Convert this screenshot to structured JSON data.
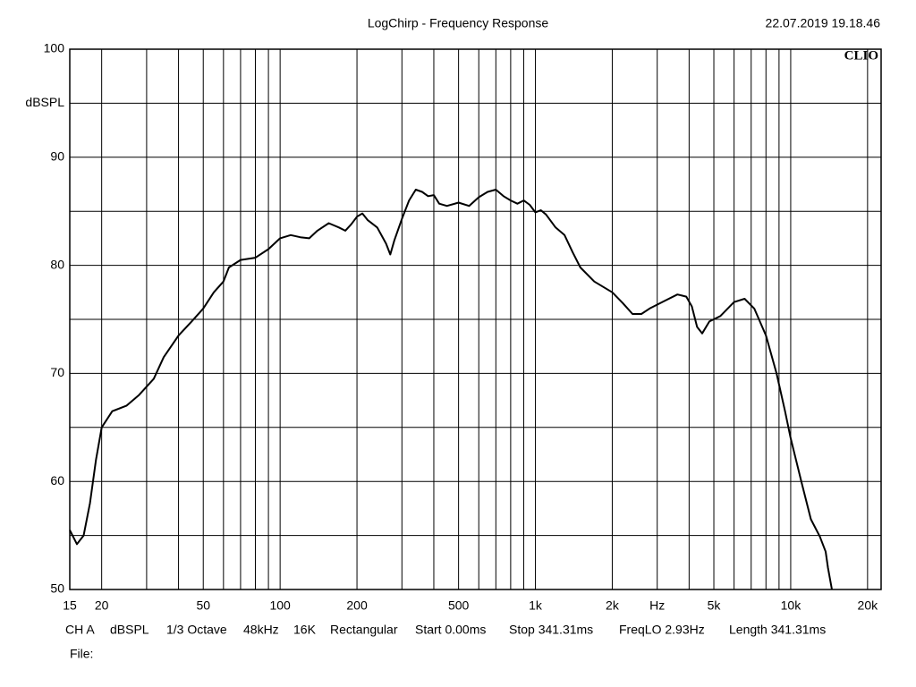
{
  "header": {
    "title": "LogChirp - Frequency Response",
    "timestamp": "22.07.2019 19.18.46"
  },
  "chart_data": {
    "type": "line",
    "xscale": "log",
    "grid": true,
    "color": "#000000",
    "logo": "CLIO",
    "xlim": [
      15,
      22600
    ],
    "ylim": [
      50,
      100
    ],
    "xticks": [
      15,
      20,
      50,
      100,
      200,
      500,
      {
        "value": 1000,
        "label": "1k"
      },
      {
        "value": 2000,
        "label": "2k"
      },
      {
        "value": 3000,
        "label": "Hz"
      },
      {
        "value": 5000,
        "label": "5k"
      },
      {
        "value": 10000,
        "label": "10k"
      },
      {
        "value": 20000,
        "label": "20k"
      }
    ],
    "xgrid_minor": [
      30,
      40,
      60,
      70,
      80,
      90,
      300,
      400,
      600,
      700,
      800,
      900,
      4000,
      6000,
      7000,
      8000,
      9000
    ],
    "yticks": [
      50,
      60,
      70,
      80,
      90,
      {
        "value": 95,
        "label": "dBSPL"
      },
      100
    ],
    "ygrid_minor": [
      55,
      65,
      75,
      85
    ],
    "x": [
      15,
      16,
      17,
      18,
      19,
      20,
      22,
      25,
      28,
      32,
      35,
      40,
      45,
      50,
      55,
      60,
      63,
      70,
      80,
      90,
      100,
      110,
      120,
      130,
      140,
      155,
      170,
      180,
      190,
      200,
      210,
      220,
      240,
      260,
      270,
      280,
      300,
      320,
      340,
      360,
      380,
      400,
      420,
      450,
      500,
      550,
      600,
      650,
      700,
      750,
      800,
      850,
      900,
      950,
      1000,
      1050,
      1100,
      1200,
      1300,
      1400,
      1500,
      1700,
      2000,
      2200,
      2400,
      2600,
      2800,
      3200,
      3600,
      3900,
      4100,
      4300,
      4500,
      4800,
      5300,
      6000,
      6600,
      7200,
      8000,
      8800,
      9500,
      10000,
      11000,
      12000,
      13000,
      13700,
      14000,
      14500
    ],
    "values": [
      55.5,
      54.2,
      55,
      58,
      62,
      65,
      66.5,
      67,
      68,
      69.5,
      71.5,
      73.5,
      74.8,
      76,
      77.5,
      78.5,
      79.8,
      80.5,
      80.7,
      81.5,
      82.5,
      82.8,
      82.6,
      82.5,
      83.2,
      83.9,
      83.5,
      83.2,
      83.8,
      84.5,
      84.8,
      84.2,
      83.5,
      82,
      81,
      82.3,
      84.3,
      86,
      87,
      86.8,
      86.4,
      86.5,
      85.7,
      85.5,
      85.8,
      85.5,
      86.3,
      86.8,
      87,
      86.4,
      86,
      85.7,
      86,
      85.6,
      84.9,
      85.1,
      84.7,
      83.5,
      82.8,
      81.2,
      79.8,
      78.5,
      77.5,
      76.5,
      75.5,
      75.5,
      76,
      76.7,
      77.3,
      77.1,
      76.2,
      74.3,
      73.7,
      74.8,
      75.3,
      76.6,
      76.9,
      76,
      73.5,
      70,
      66.5,
      64,
      60,
      56.5,
      54.9,
      53.5,
      52,
      50
    ]
  },
  "footer": {
    "settings": [
      "CH A",
      "dBSPL",
      "1/3 Octave",
      "48kHz",
      "16K",
      "Rectangular",
      "Start 0.00ms",
      "Stop 341.31ms",
      "FreqLO 2.93Hz",
      "Length 341.31ms"
    ],
    "file": "File:"
  }
}
